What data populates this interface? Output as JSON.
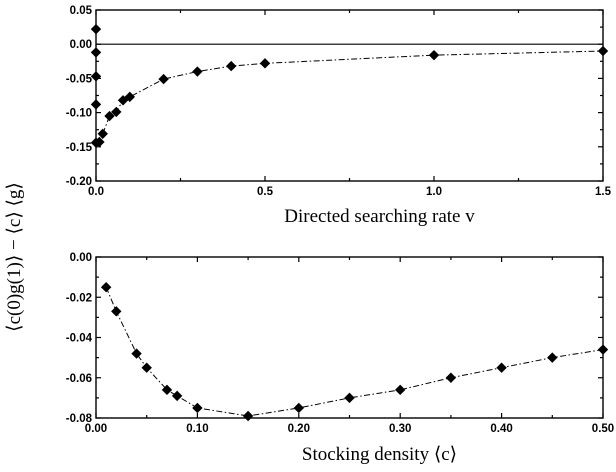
{
  "y_label": "⟨c(0)g(1)⟩ − ⟨c⟩ ⟨g⟩",
  "chart_data": [
    {
      "type": "line",
      "xlabel": "Directed searching rate v",
      "xlim": [
        0,
        1.5
      ],
      "ylim": [
        -0.2,
        0.05
      ],
      "x_ticks": [
        "0.0",
        "0.5",
        "1.0",
        "1.5"
      ],
      "y_ticks": [
        "0.05",
        "0.00",
        "-0.05",
        "-0.10",
        "-0.15",
        "-0.20"
      ],
      "x_tick_values": [
        0,
        0.5,
        1.0,
        1.5
      ],
      "y_tick_values": [
        0.05,
        0.0,
        -0.05,
        -0.1,
        -0.15,
        -0.2
      ],
      "reference_line_y": 0,
      "isolated_points": [
        {
          "x": 0.0,
          "y": 0.022
        },
        {
          "x": 0.0,
          "y": -0.012
        },
        {
          "x": 0.0,
          "y": -0.047
        },
        {
          "x": 0.0,
          "y": -0.088
        }
      ],
      "series": [
        {
          "x": [
            0.0,
            0.01,
            0.02,
            0.04,
            0.06,
            0.08,
            0.1,
            0.2,
            0.3,
            0.4,
            0.5,
            1.0,
            1.5
          ],
          "y": [
            -0.144,
            -0.143,
            -0.131,
            -0.105,
            -0.099,
            -0.082,
            -0.077,
            -0.051,
            -0.04,
            -0.032,
            -0.028,
            -0.016,
            -0.01
          ]
        }
      ]
    },
    {
      "type": "line",
      "xlabel": "Stocking density ⟨c⟩",
      "xlim": [
        0,
        0.5
      ],
      "ylim": [
        -0.08,
        0.0
      ],
      "x_ticks": [
        "0.00",
        "0.10",
        "0.20",
        "0.30",
        "0.40",
        "0.50"
      ],
      "y_ticks": [
        "0.00",
        "-0.02",
        "-0.04",
        "-0.06",
        "-0.08"
      ],
      "x_tick_values": [
        0,
        0.1,
        0.2,
        0.3,
        0.4,
        0.5
      ],
      "y_tick_values": [
        0.0,
        -0.02,
        -0.04,
        -0.06,
        -0.08
      ],
      "series": [
        {
          "x": [
            0.01,
            0.02,
            0.04,
            0.05,
            0.07,
            0.08,
            0.1,
            0.15,
            0.2,
            0.25,
            0.3,
            0.35,
            0.4,
            0.45,
            0.5
          ],
          "y": [
            -0.015,
            -0.027,
            -0.048,
            -0.055,
            -0.066,
            -0.069,
            -0.075,
            -0.079,
            -0.075,
            -0.07,
            -0.066,
            -0.06,
            -0.055,
            -0.05,
            -0.046
          ]
        }
      ]
    }
  ]
}
